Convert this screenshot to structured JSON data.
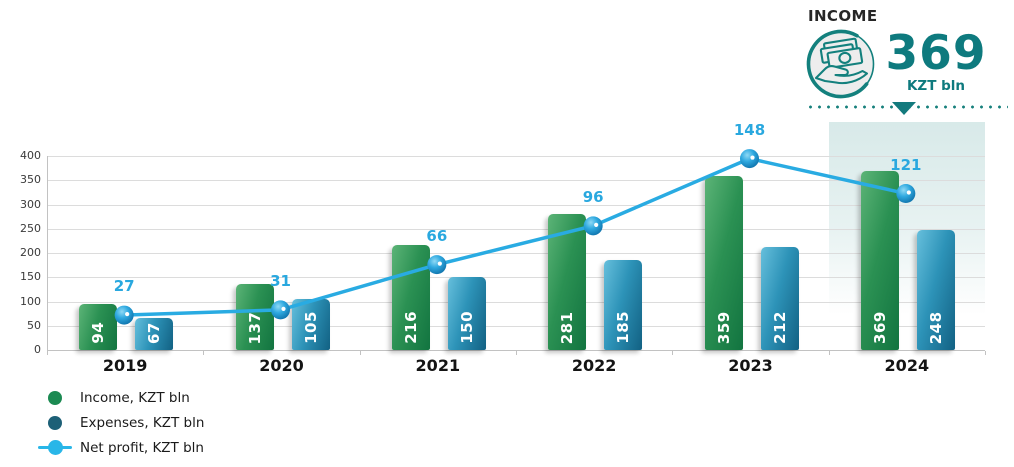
{
  "panel": {
    "title": "INCOME",
    "value": "369",
    "unit": "KZT bln",
    "icon": "money-in-hand-icon",
    "accent_color": "#0e7a7e"
  },
  "legend": {
    "items": [
      {
        "label": "Income, KZT bln",
        "marker": "circle",
        "color": "#1b8a52"
      },
      {
        "label": "Expenses, KZT bln",
        "marker": "circle",
        "color": "#1d6077"
      },
      {
        "label": "Net profit, KZT bln",
        "marker": "line-dot",
        "color": "#29b6e8"
      }
    ]
  },
  "chart_data": {
    "type": "bar",
    "subtype": "grouped bars with overlaid line (combo)",
    "categories": [
      "2019",
      "2020",
      "2021",
      "2022",
      "2023",
      "2024"
    ],
    "series": [
      {
        "name": "Income, KZT bln",
        "type": "bar",
        "values": [
          94,
          137,
          216,
          281,
          359,
          369
        ],
        "axis": "primary"
      },
      {
        "name": "Expenses, KZT bln",
        "type": "bar",
        "values": [
          67,
          105,
          150,
          185,
          212,
          248
        ],
        "axis": "primary"
      },
      {
        "name": "Net profit, KZT bln",
        "type": "line",
        "values": [
          27,
          31,
          66,
          96,
          148,
          121
        ],
        "axis": "secondary",
        "color": "#29abe2"
      }
    ],
    "y_axis": {
      "min": 0,
      "max": 400,
      "step": 50,
      "tick_labels": [
        "0",
        "50",
        "100",
        "150",
        "200",
        "250",
        "300",
        "350",
        "400"
      ]
    },
    "secondary_y_axis": {
      "min": 0,
      "max": 150,
      "visible": false
    },
    "grid": true,
    "legend_position": "bottom-left",
    "highlight_category": "2024",
    "xlabel": "",
    "ylabel": ""
  },
  "colors": {
    "accent_teal": "#137a7d",
    "line_blue": "#29abe2",
    "point_label_blue": "#29a8df",
    "grid": "#dcdcdc",
    "axis": "#c2c2c2",
    "income_bar": "#2b9153",
    "expenses_bar": "#2d93b8"
  }
}
